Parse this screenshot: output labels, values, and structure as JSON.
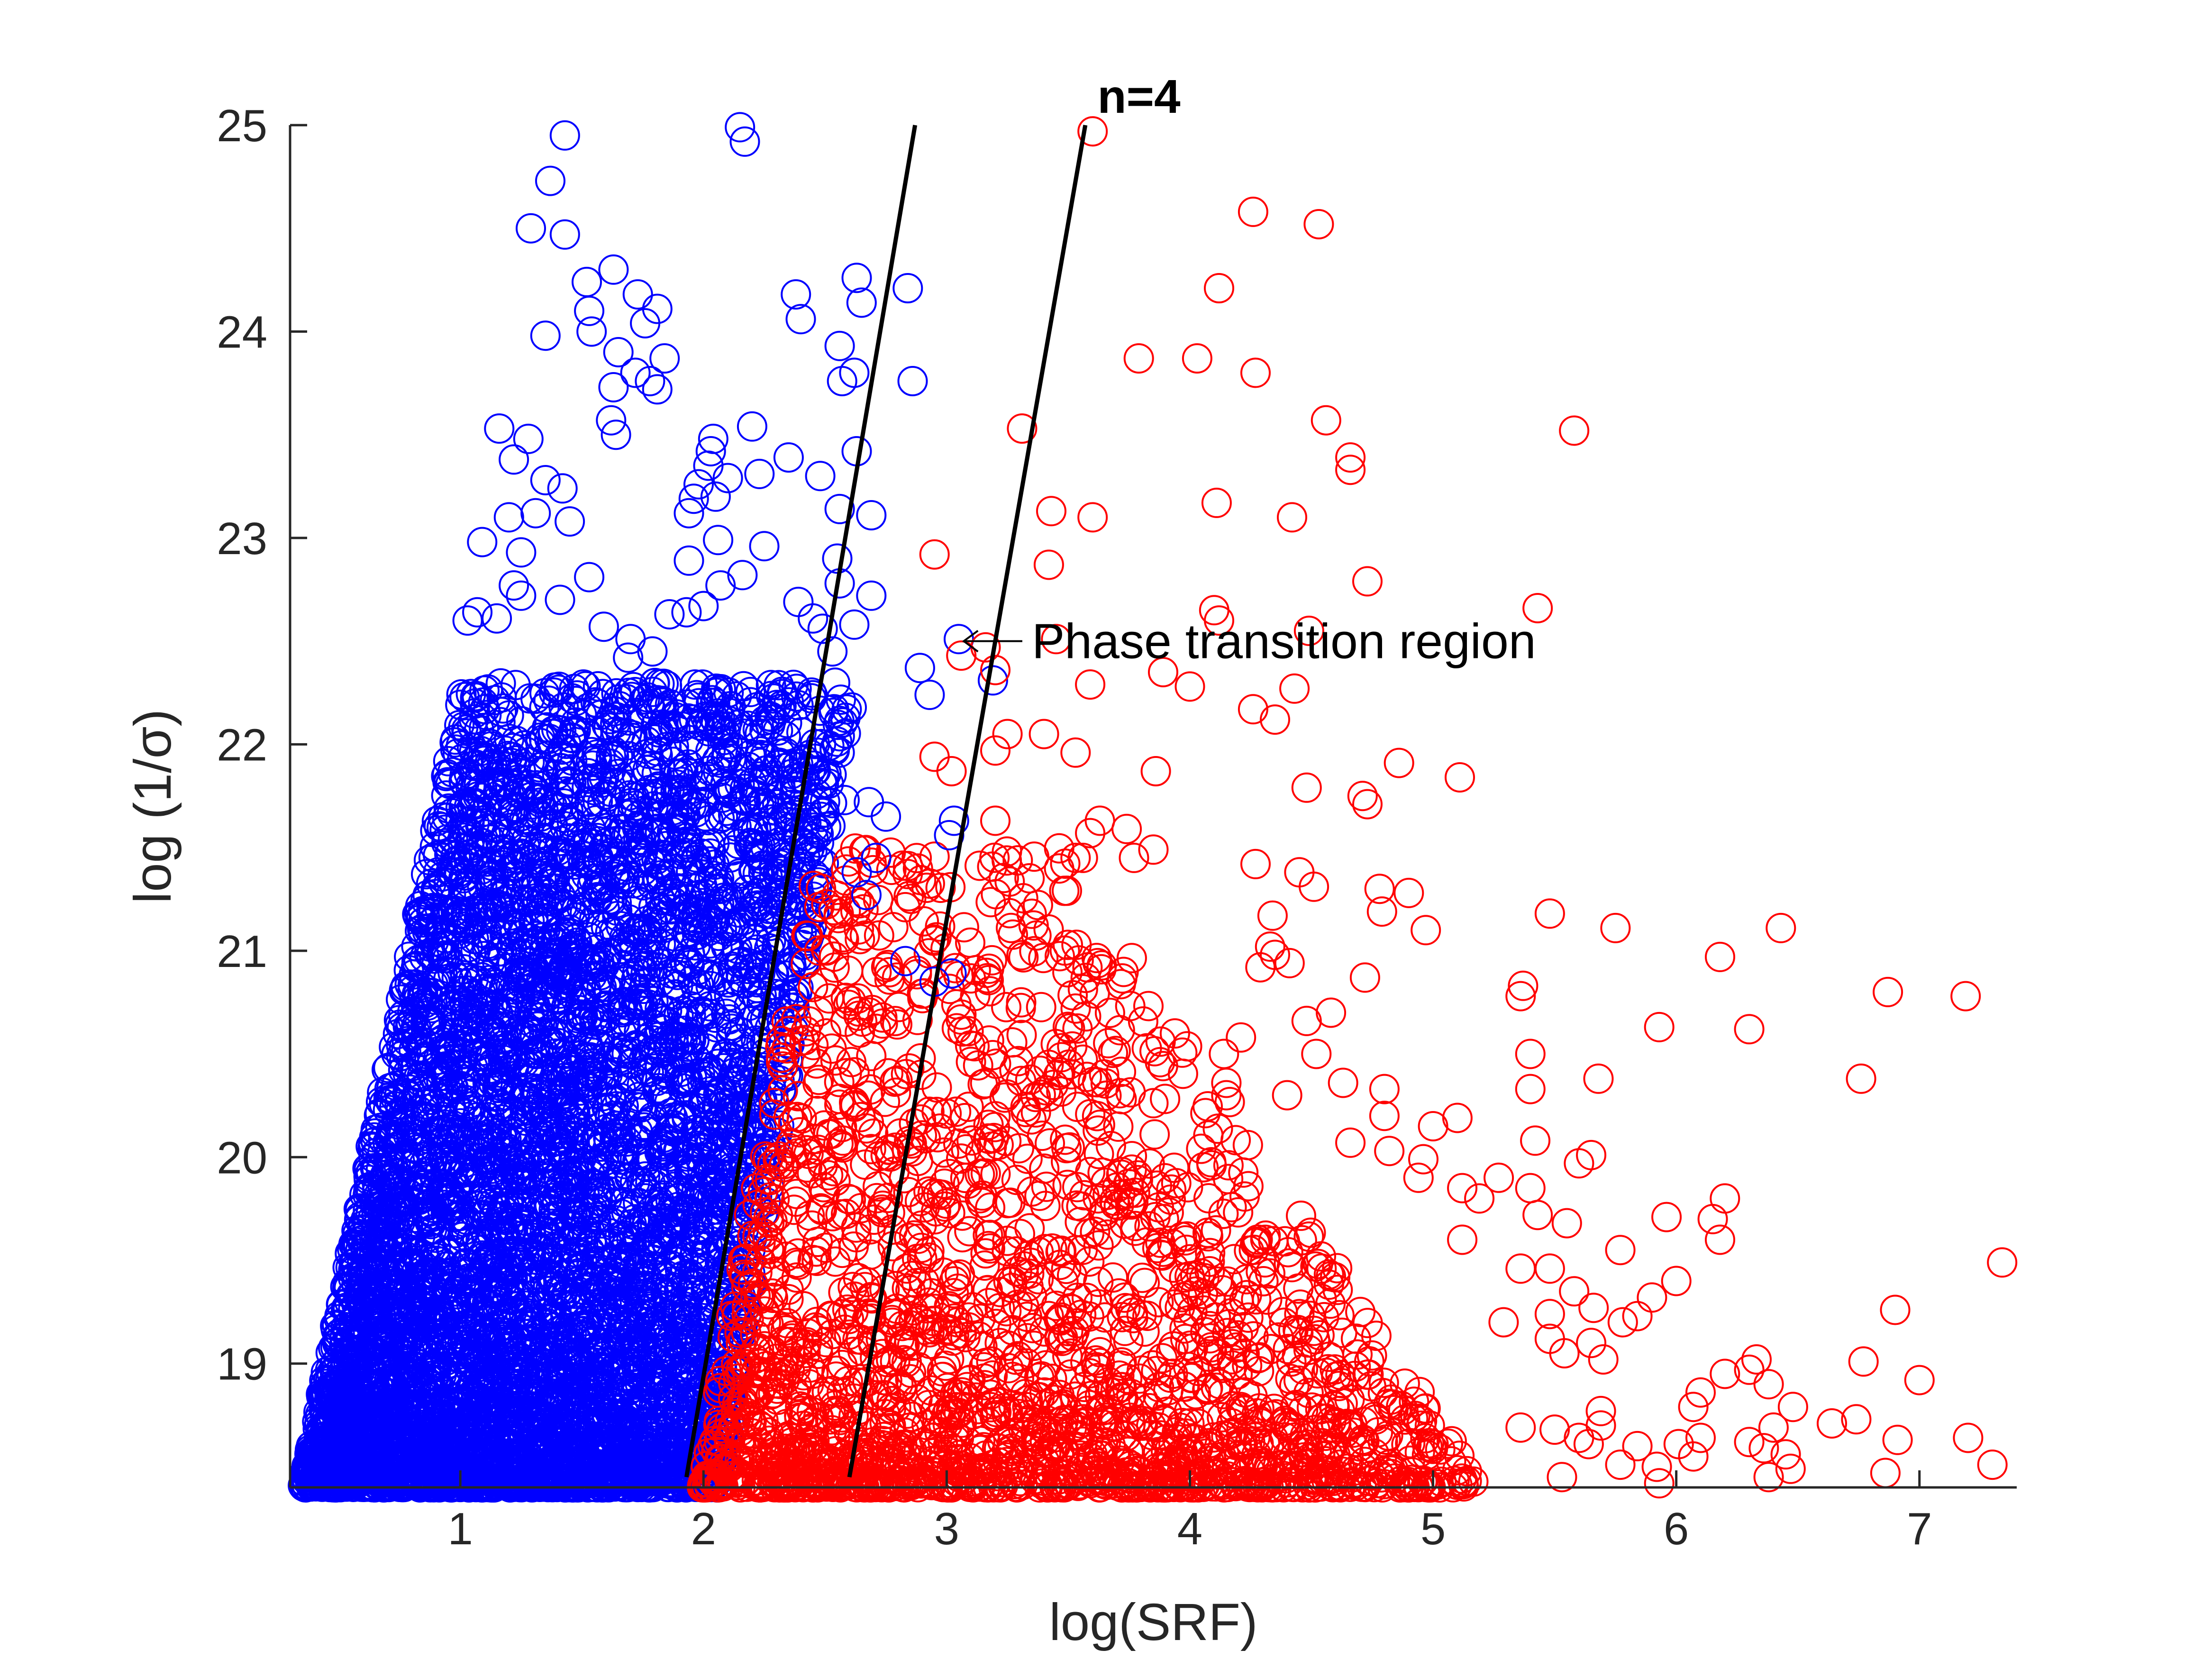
{
  "chart_data": {
    "type": "scatter",
    "title": "n=4",
    "xlabel": "log(SRF)",
    "ylabel": "log (1/σ)",
    "xlim": [
      0.3,
      7.4
    ],
    "ylim": [
      18.4,
      25
    ],
    "x_ticks": [
      1,
      2,
      3,
      4,
      5,
      6,
      7
    ],
    "y_ticks": [
      19,
      20,
      21,
      22,
      23,
      24,
      25
    ],
    "grid": false,
    "legend": "none",
    "marker": "open-circle",
    "series": [
      {
        "color": "#0000ff",
        "points": [
          [
            1.43,
            24.95
          ],
          [
            1.37,
            24.73
          ],
          [
            1.29,
            24.5
          ],
          [
            1.43,
            24.47
          ],
          [
            2.15,
            24.99
          ],
          [
            2.17,
            24.92
          ],
          [
            1.52,
            24.24
          ],
          [
            1.63,
            24.3
          ],
          [
            1.53,
            24.1
          ],
          [
            1.35,
            23.98
          ],
          [
            1.54,
            24.0
          ],
          [
            1.73,
            24.18
          ],
          [
            1.81,
            24.11
          ],
          [
            1.76,
            24.04
          ],
          [
            1.65,
            23.9
          ],
          [
            1.72,
            23.8
          ],
          [
            1.84,
            23.87
          ],
          [
            1.78,
            23.76
          ],
          [
            1.81,
            23.72
          ],
          [
            1.63,
            23.73
          ],
          [
            1.62,
            23.57
          ],
          [
            1.64,
            23.5
          ],
          [
            2.38,
            24.18
          ],
          [
            2.4,
            24.06
          ],
          [
            2.63,
            24.26
          ],
          [
            2.65,
            24.14
          ],
          [
            2.84,
            24.21
          ],
          [
            2.56,
            23.93
          ],
          [
            2.57,
            23.76
          ],
          [
            2.62,
            23.8
          ],
          [
            2.86,
            23.76
          ],
          [
            2.2,
            23.54
          ],
          [
            2.04,
            23.48
          ],
          [
            2.03,
            23.42
          ],
          [
            2.02,
            23.35
          ],
          [
            1.98,
            23.26
          ],
          [
            2.05,
            23.2
          ],
          [
            1.96,
            23.19
          ],
          [
            1.94,
            23.12
          ],
          [
            2.1,
            23.29
          ],
          [
            2.23,
            23.31
          ],
          [
            2.35,
            23.39
          ],
          [
            2.48,
            23.3
          ],
          [
            2.56,
            23.14
          ],
          [
            2.63,
            23.42
          ],
          [
            2.69,
            23.11
          ],
          [
            2.55,
            22.9
          ],
          [
            2.56,
            22.78
          ],
          [
            2.06,
            22.99
          ],
          [
            2.16,
            22.82
          ],
          [
            2.07,
            22.77
          ],
          [
            1.94,
            22.89
          ],
          [
            2.0,
            22.67
          ],
          [
            2.25,
            22.96
          ],
          [
            2.39,
            22.69
          ],
          [
            2.45,
            22.61
          ],
          [
            2.49,
            22.56
          ],
          [
            2.53,
            22.45
          ],
          [
            2.62,
            22.58
          ],
          [
            2.69,
            22.72
          ],
          [
            3.05,
            22.51
          ],
          [
            3.19,
            22.31
          ],
          [
            2.89,
            22.37
          ],
          [
            2.93,
            22.24
          ],
          [
            2.22,
            22.18
          ],
          [
            2.28,
            22.12
          ],
          [
            2.31,
            21.9
          ],
          [
            2.38,
            21.89
          ],
          [
            2.44,
            21.95
          ],
          [
            2.56,
            21.96
          ],
          [
            2.58,
            21.73
          ],
          [
            2.68,
            21.72
          ],
          [
            2.75,
            21.65
          ],
          [
            3.03,
            21.63
          ],
          [
            3.01,
            21.56
          ],
          [
            2.71,
            21.45
          ],
          [
            2.63,
            21.38
          ],
          [
            2.67,
            21.27
          ],
          [
            3.02,
            20.89
          ],
          [
            2.95,
            20.85
          ],
          [
            2.83,
            20.95
          ],
          [
            1.16,
            23.53
          ],
          [
            1.22,
            23.38
          ],
          [
            1.28,
            23.48
          ],
          [
            1.35,
            23.28
          ],
          [
            1.42,
            23.24
          ],
          [
            1.2,
            23.1
          ],
          [
            1.09,
            22.98
          ],
          [
            1.25,
            22.93
          ],
          [
            1.31,
            23.12
          ],
          [
            1.45,
            23.08
          ],
          [
            1.53,
            22.81
          ],
          [
            1.41,
            22.7
          ],
          [
            1.07,
            22.64
          ],
          [
            1.03,
            22.6
          ],
          [
            1.15,
            22.61
          ],
          [
            1.59,
            22.57
          ],
          [
            1.7,
            22.51
          ],
          [
            1.79,
            22.45
          ],
          [
            1.69,
            22.42
          ],
          [
            1.86,
            22.63
          ],
          [
            1.93,
            22.64
          ],
          [
            1.22,
            22.77
          ],
          [
            1.25,
            22.72
          ]
        ],
        "cloud": {
          "x_range": [
            0.3,
            2.8
          ],
          "y_range": [
            18.4,
            22.3
          ],
          "count": 6000,
          "description": "dense blue point cloud, x from about 0.3 to 2.8, densest near the lower left"
        }
      },
      {
        "color": "#ff0000",
        "points": [
          [
            3.6,
            24.97
          ],
          [
            4.26,
            24.58
          ],
          [
            4.53,
            24.52
          ],
          [
            4.12,
            24.21
          ],
          [
            3.79,
            23.87
          ],
          [
            4.03,
            23.87
          ],
          [
            4.27,
            23.8
          ],
          [
            3.31,
            23.53
          ],
          [
            4.56,
            23.57
          ],
          [
            5.58,
            23.52
          ],
          [
            4.66,
            23.39
          ],
          [
            4.66,
            23.33
          ],
          [
            3.43,
            23.13
          ],
          [
            3.6,
            23.1
          ],
          [
            4.11,
            23.17
          ],
          [
            4.42,
            23.1
          ],
          [
            2.95,
            22.92
          ],
          [
            3.42,
            22.87
          ],
          [
            4.73,
            22.79
          ],
          [
            4.1,
            22.65
          ],
          [
            4.12,
            22.6
          ],
          [
            5.43,
            22.66
          ],
          [
            4.49,
            22.55
          ],
          [
            3.16,
            22.47
          ],
          [
            3.2,
            22.36
          ],
          [
            3.06,
            22.43
          ],
          [
            3.45,
            22.51
          ],
          [
            3.59,
            22.29
          ],
          [
            3.89,
            22.35
          ],
          [
            4.0,
            22.28
          ],
          [
            4.26,
            22.17
          ],
          [
            4.35,
            22.12
          ],
          [
            4.43,
            22.27
          ],
          [
            3.25,
            22.05
          ],
          [
            3.4,
            22.05
          ],
          [
            3.2,
            21.97
          ],
          [
            3.53,
            21.96
          ],
          [
            2.95,
            21.94
          ],
          [
            3.02,
            21.87
          ],
          [
            3.86,
            21.87
          ],
          [
            4.48,
            21.79
          ],
          [
            4.71,
            21.75
          ],
          [
            4.73,
            21.71
          ],
          [
            4.86,
            21.91
          ],
          [
            5.11,
            21.84
          ],
          [
            3.2,
            21.63
          ],
          [
            3.59,
            21.57
          ],
          [
            3.63,
            21.63
          ],
          [
            3.74,
            21.59
          ],
          [
            3.53,
            21.45
          ],
          [
            3.56,
            21.45
          ],
          [
            3.77,
            21.45
          ],
          [
            3.85,
            21.49
          ],
          [
            4.27,
            21.42
          ],
          [
            4.45,
            21.38
          ],
          [
            4.51,
            21.31
          ],
          [
            4.34,
            21.17
          ],
          [
            4.78,
            21.3
          ],
          [
            4.9,
            21.28
          ],
          [
            4.79,
            21.19
          ],
          [
            4.97,
            21.1
          ],
          [
            5.48,
            21.18
          ],
          [
            5.75,
            21.11
          ],
          [
            6.43,
            21.11
          ],
          [
            6.18,
            20.97
          ],
          [
            4.33,
            21.02
          ],
          [
            4.35,
            20.98
          ],
          [
            4.41,
            20.94
          ],
          [
            4.29,
            20.92
          ],
          [
            4.72,
            20.87
          ],
          [
            5.37,
            20.83
          ],
          [
            5.36,
            20.78
          ],
          [
            6.87,
            20.8
          ],
          [
            7.19,
            20.78
          ],
          [
            4.48,
            20.66
          ],
          [
            4.58,
            20.7
          ],
          [
            5.93,
            20.63
          ],
          [
            6.3,
            20.62
          ],
          [
            4.21,
            20.58
          ],
          [
            4.14,
            20.5
          ],
          [
            4.15,
            20.36
          ],
          [
            4.15,
            20.3
          ],
          [
            4.52,
            20.5
          ],
          [
            4.4,
            20.3
          ],
          [
            4.63,
            20.36
          ],
          [
            5.4,
            20.5
          ],
          [
            5.68,
            20.38
          ],
          [
            6.76,
            20.38
          ],
          [
            4.8,
            20.33
          ],
          [
            4.8,
            20.2
          ],
          [
            5.0,
            20.15
          ],
          [
            5.1,
            20.19
          ],
          [
            5.4,
            20.33
          ],
          [
            4.66,
            20.07
          ],
          [
            4.82,
            20.03
          ],
          [
            4.96,
            19.99
          ],
          [
            5.42,
            20.08
          ],
          [
            5.6,
            19.97
          ],
          [
            5.65,
            20.01
          ],
          [
            4.94,
            19.9
          ],
          [
            5.12,
            19.85
          ],
          [
            5.27,
            19.9
          ],
          [
            5.4,
            19.85
          ],
          [
            5.43,
            19.72
          ],
          [
            5.55,
            19.68
          ],
          [
            5.19,
            19.8
          ],
          [
            5.96,
            19.71
          ],
          [
            6.2,
            19.8
          ],
          [
            6.15,
            19.7
          ],
          [
            6.18,
            19.6
          ],
          [
            5.77,
            19.55
          ],
          [
            5.12,
            19.6
          ],
          [
            5.36,
            19.46
          ],
          [
            5.29,
            19.2
          ],
          [
            5.48,
            19.46
          ],
          [
            5.58,
            19.35
          ],
          [
            5.48,
            19.24
          ],
          [
            5.66,
            19.27
          ],
          [
            5.84,
            19.23
          ],
          [
            5.78,
            19.2
          ],
          [
            5.9,
            19.32
          ],
          [
            6.0,
            19.4
          ],
          [
            7.34,
            19.49
          ],
          [
            6.9,
            19.26
          ],
          [
            5.48,
            19.12
          ],
          [
            5.65,
            19.1
          ],
          [
            5.7,
            19.02
          ],
          [
            5.54,
            19.05
          ],
          [
            6.1,
            18.86
          ],
          [
            6.2,
            18.95
          ],
          [
            6.3,
            18.97
          ],
          [
            6.33,
            19.02
          ],
          [
            6.77,
            19.01
          ],
          [
            7.0,
            18.92
          ],
          [
            6.38,
            18.9
          ],
          [
            6.48,
            18.79
          ],
          [
            6.07,
            18.79
          ],
          [
            6.1,
            18.64
          ],
          [
            6.4,
            18.69
          ],
          [
            6.64,
            18.71
          ],
          [
            6.74,
            18.73
          ],
          [
            6.91,
            18.63
          ],
          [
            7.2,
            18.64
          ],
          [
            6.3,
            18.62
          ],
          [
            6.36,
            18.59
          ],
          [
            6.45,
            18.56
          ],
          [
            6.01,
            18.61
          ],
          [
            6.07,
            18.55
          ],
          [
            5.5,
            18.68
          ],
          [
            5.6,
            18.64
          ],
          [
            5.64,
            18.61
          ],
          [
            5.69,
            18.77
          ],
          [
            5.69,
            18.7
          ],
          [
            5.36,
            18.69
          ],
          [
            5.84,
            18.6
          ],
          [
            5.92,
            18.5
          ],
          [
            5.77,
            18.51
          ],
          [
            6.38,
            18.45
          ],
          [
            6.47,
            18.49
          ],
          [
            6.86,
            18.47
          ],
          [
            7.3,
            18.51
          ],
          [
            5.53,
            18.45
          ],
          [
            5.93,
            18.42
          ]
        ],
        "cloud": {
          "x_range": [
            1.9,
            5.2
          ],
          "y_range": [
            18.4,
            21.5
          ],
          "count": 2200,
          "description": "dense red point cloud to the right of the blue cloud, densest near the bottom between x 2.2 and 4"
        }
      }
    ],
    "lines": [
      {
        "color": "#000000",
        "points": [
          [
            1.93,
            18.45
          ],
          [
            2.87,
            25.0
          ]
        ]
      },
      {
        "color": "#000000",
        "points": [
          [
            2.6,
            18.45
          ],
          [
            3.57,
            25.0
          ]
        ]
      }
    ],
    "annotations": [
      {
        "text": "Phase transition region",
        "arrow_to": [
          3.07,
          22.5
        ],
        "text_at": [
          3.35,
          22.5
        ]
      },
      {
        "text": "n=4",
        "at": [
          3.62,
          25.06
        ]
      }
    ]
  }
}
